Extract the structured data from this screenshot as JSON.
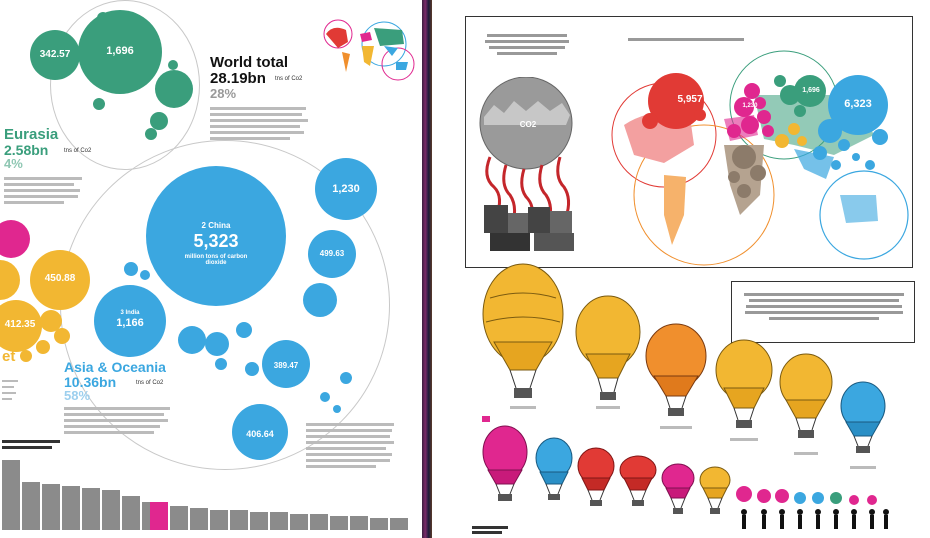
{
  "left_page": {
    "world_total": {
      "title": "World total",
      "value": "28.19bn",
      "unit": "tns of Co2",
      "percent": "28%"
    },
    "eurasia": {
      "title": "Eurasia",
      "value": "2.58bn",
      "unit": "tns of Co2",
      "percent": "4%"
    },
    "asia_oceania": {
      "title": "Asia & Oceania",
      "value": "10.36bn",
      "unit": "tns of Co2",
      "percent": "58%"
    },
    "bubbles": {
      "green_top": "342.57",
      "green_big": "1,696",
      "china_rank": "2 China",
      "china_value": "5,323",
      "china_unit": "million tons of carbon dioxide",
      "japan_value": "1,230",
      "small_499": "499.63",
      "india_rank": "3 India",
      "india_value": "1,166",
      "value_389": "389.47",
      "value_406": "406.64",
      "yellow_value": "450.88",
      "yellow_value2": "412.35"
    },
    "region_partial": "et"
  },
  "right_page": {
    "co2_label": "CO2",
    "bubbles": {
      "red_value": "5,957",
      "magenta_value": "1,696",
      "blue_value": "6,323",
      "pink_value": "1,230"
    }
  },
  "colors": {
    "green": "#3a9e7c",
    "blue": "#3ba7e0",
    "yellow": "#f2b732",
    "magenta": "#e0278f",
    "red": "#e13a35",
    "orange": "#f08f2d",
    "grey": "#8b8b8b"
  },
  "icons": {
    "factory": "factory-icon",
    "balloon": "hot-air-balloon-icon",
    "person": "person-silhouette-icon"
  }
}
